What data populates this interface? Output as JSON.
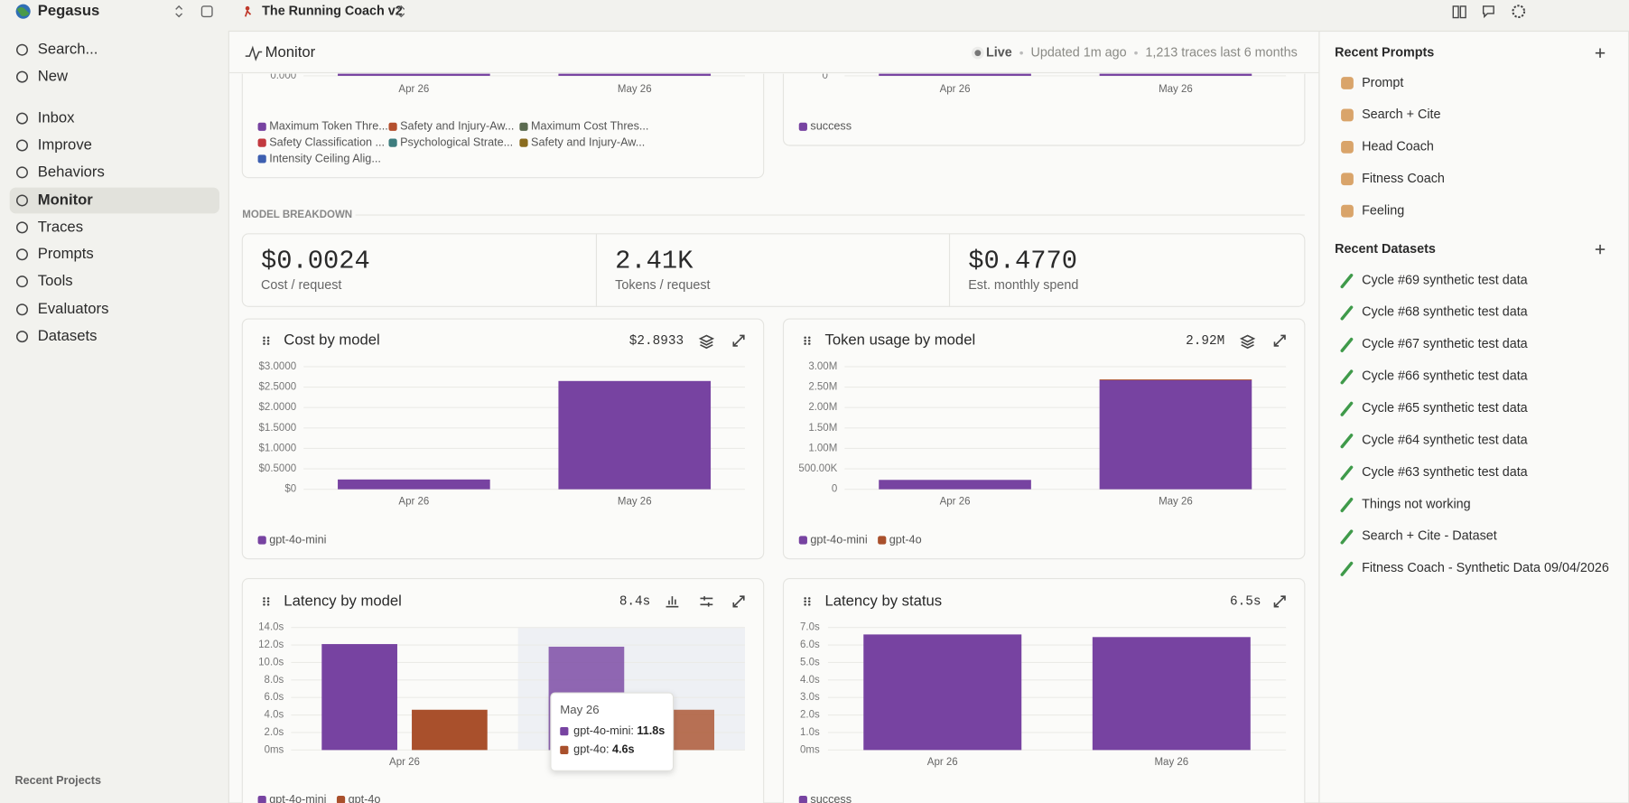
{
  "sidebar": {
    "workspace": "Pegasus",
    "nav": [
      "Search...",
      "New",
      "Inbox",
      "Improve",
      "Behaviors",
      "Monitor",
      "Traces",
      "Prompts",
      "Tools",
      "Evaluators",
      "Datasets"
    ],
    "footer": "Recent Projects"
  },
  "topbar": {
    "project": "The Running Coach v2"
  },
  "header": {
    "title": "Monitor",
    "status": "Live",
    "updated": "Updated 1m ago",
    "traces": "1,213 traces last 6 months"
  },
  "section_label": "MODEL BREAKDOWN",
  "stats": [
    {
      "value": "$0.0024",
      "label": "Cost / request"
    },
    {
      "value": "2.41K",
      "label": "Tokens / request"
    },
    {
      "value": "$0.4770",
      "label": "Est. monthly spend"
    }
  ],
  "chart_data": [
    {
      "type": "bar",
      "stacked": true,
      "grid": true,
      "categories": [
        "Apr 26",
        "May 26"
      ],
      "yticks": [
        {
          "value": 0,
          "label": "0.000"
        }
      ],
      "series": [
        {
          "name": "Maximum Token Thre...",
          "color": "#7743a1",
          "values": [
            0,
            0
          ]
        },
        {
          "name": "Safety and Injury-Aw...",
          "color": "#b4502e",
          "values": [
            null,
            null
          ]
        },
        {
          "name": "Maximum Cost Thres...",
          "color": "#5b6b50",
          "values": [
            null,
            null
          ]
        },
        {
          "name": "Safety Classification ...",
          "color": "#c2393f",
          "values": [
            null,
            null
          ]
        },
        {
          "name": "Psychological Strate...",
          "color": "#3e7d7e",
          "values": [
            null,
            null
          ]
        },
        {
          "name": "Safety and Injury-Aw...",
          "color": "#8a6c1f",
          "values": [
            null,
            null
          ]
        },
        {
          "name": "Intensity Ceiling Alig...",
          "color": "#3d5fb0",
          "values": [
            null,
            null
          ]
        }
      ]
    },
    {
      "type": "bar",
      "stacked": true,
      "grid": true,
      "categories": [
        "Apr 26",
        "May 26"
      ],
      "yticks": [
        0
      ],
      "series": [
        {
          "name": "success",
          "color": "#7743a1",
          "values": [
            0,
            0
          ]
        }
      ]
    },
    {
      "type": "bar",
      "title": "Cost by model",
      "total": "$2.8933",
      "stacked": true,
      "grid": true,
      "categories": [
        "Apr 26",
        "May 26"
      ],
      "ylim": [
        0,
        3
      ],
      "yticks": [
        {
          "value": 0,
          "label": "$0"
        },
        {
          "value": 0.5,
          "label": "$0.5000"
        },
        {
          "value": 1,
          "label": "$1.0000"
        },
        {
          "value": 1.5,
          "label": "$1.5000"
        },
        {
          "value": 2,
          "label": "$2.0000"
        },
        {
          "value": 2.5,
          "label": "$2.5000"
        },
        {
          "value": 3,
          "label": "$3.0000"
        }
      ],
      "series": [
        {
          "name": "gpt-4o-mini",
          "color": "#7743a1",
          "values": [
            0.24,
            2.65
          ]
        }
      ]
    },
    {
      "type": "bar",
      "title": "Token usage by model",
      "total": "2.92M",
      "stacked": true,
      "grid": true,
      "categories": [
        "Apr 26",
        "May 26"
      ],
      "ylim": [
        0,
        3000000
      ],
      "yticks": [
        0,
        {
          "value": 500000,
          "label": "500.00K"
        },
        {
          "value": 1000000,
          "label": "1.00M"
        },
        {
          "value": 1500000,
          "label": "1.50M"
        },
        {
          "value": 2000000,
          "label": "2.00M"
        },
        {
          "value": 2500000,
          "label": "2.50M"
        },
        {
          "value": 3000000,
          "label": "3.00M"
        }
      ],
      "series": [
        {
          "name": "gpt-4o-mini",
          "color": "#7743a1",
          "values": [
            230000,
            2670000
          ]
        },
        {
          "name": "gpt-4o",
          "color": "#a9502c",
          "values": [
            0,
            20000
          ]
        }
      ]
    },
    {
      "type": "bar",
      "title": "Latency by model",
      "total": "8.4s",
      "stacked": false,
      "grid": true,
      "categories": [
        "Apr 26",
        "May 26"
      ],
      "ylim": [
        0,
        14
      ],
      "yticks": [
        {
          "value": 0,
          "label": "0ms"
        },
        {
          "value": 2,
          "label": "2.0s"
        },
        {
          "value": 4,
          "label": "4.0s"
        },
        {
          "value": 6,
          "label": "6.0s"
        },
        {
          "value": 8,
          "label": "8.0s"
        },
        {
          "value": 10,
          "label": "10.0s"
        },
        {
          "value": 12,
          "label": "12.0s"
        },
        {
          "value": 14,
          "label": "14.0s"
        }
      ],
      "series": [
        {
          "name": "gpt-4o-mini",
          "color": "#7743a1",
          "values": [
            12.1,
            11.8
          ]
        },
        {
          "name": "gpt-4o",
          "color": "#a9502c",
          "values": [
            4.6,
            4.6
          ]
        }
      ]
    },
    {
      "type": "bar",
      "title": "Latency by status",
      "total": "6.5s",
      "stacked": false,
      "grid": true,
      "categories": [
        "Apr 26",
        "May 26"
      ],
      "ylim": [
        0,
        7
      ],
      "yticks": [
        {
          "value": 0,
          "label": "0ms"
        },
        {
          "value": 1,
          "label": "1.0s"
        },
        {
          "value": 2,
          "label": "2.0s"
        },
        {
          "value": 3,
          "label": "3.0s"
        },
        {
          "value": 4,
          "label": "4.0s"
        },
        {
          "value": 5,
          "label": "5.0s"
        },
        {
          "value": 6,
          "label": "6.0s"
        },
        {
          "value": 7,
          "label": "7.0s"
        }
      ],
      "series": [
        {
          "name": "success",
          "color": "#7743a1",
          "values": [
            6.6,
            6.45
          ]
        }
      ]
    }
  ],
  "tooltip": {
    "title": "May 26",
    "rows": [
      {
        "label": "gpt-4o-mini:",
        "value": "11.8s"
      },
      {
        "label": "gpt-4o:",
        "value": "4.6s"
      }
    ]
  },
  "recent_prompts": {
    "title": "Recent Prompts",
    "items": [
      "Prompt",
      "Search + Cite",
      "Head Coach",
      "Fitness Coach",
      "Feeling"
    ]
  },
  "recent_datasets": {
    "title": "Recent Datasets",
    "items": [
      "Cycle #69 synthetic test data",
      "Cycle #68 synthetic test data",
      "Cycle #67 synthetic test data",
      "Cycle #66 synthetic test data",
      "Cycle #65 synthetic test data",
      "Cycle #64 synthetic test data",
      "Cycle #63 synthetic test data",
      "Things not working",
      "Search + Cite - Dataset",
      "Fitness Coach - Synthetic Data 09/04/2026"
    ]
  }
}
